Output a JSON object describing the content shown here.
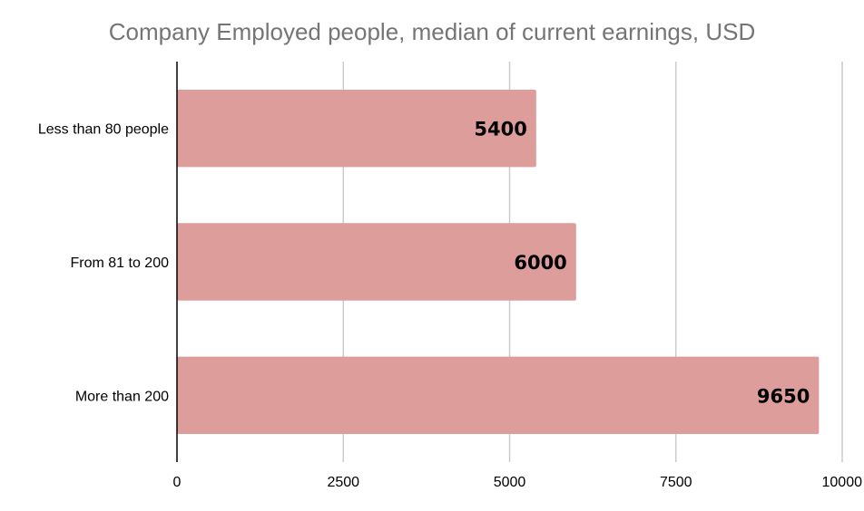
{
  "chart_data": {
    "type": "bar",
    "orientation": "horizontal",
    "title": "Company Employed people, median of current earnings, USD",
    "categories": [
      "Less than 80 people",
      "From 81 to 200",
      "More than 200"
    ],
    "values": [
      5400,
      6000,
      9650
    ],
    "xlim": [
      0,
      10000
    ],
    "x_ticks": [
      "0",
      "2500",
      "5000",
      "7500",
      "10000"
    ],
    "xlabel": "",
    "ylabel": "",
    "grid": "vertical",
    "legend": "none",
    "data_labels": [
      "5400",
      "6000",
      "9650"
    ],
    "bar_color": "#dd9d9b",
    "title_color": "#757575",
    "grid_color": "#cccccc"
  }
}
